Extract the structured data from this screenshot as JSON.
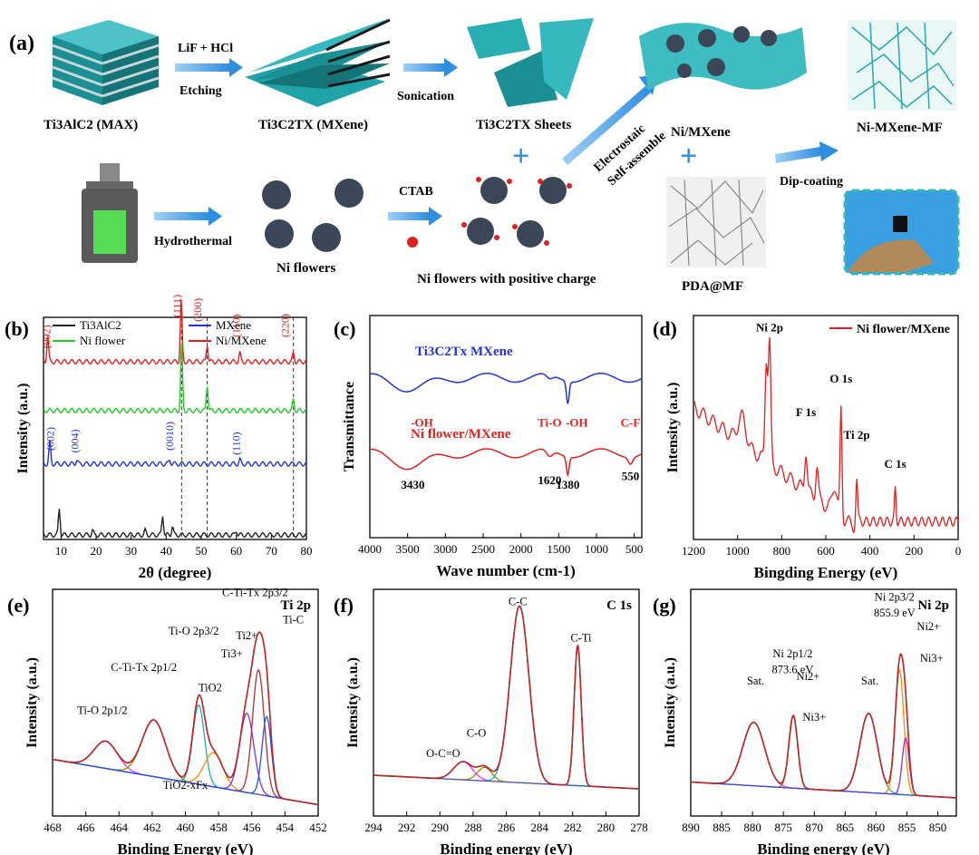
{
  "colors": {
    "teal": "#1aa3a8",
    "blue_arrow": "#2f8de0",
    "red": "#e02020",
    "green": "#22cc22",
    "blue": "#2233dd",
    "black": "#222222",
    "magenta": "#ff33ff",
    "olive": "#9a8a00",
    "cyan": "#22aaaa",
    "orange": "#ff8c00"
  },
  "panel_a": {
    "label": "(a)",
    "max": "Ti3AlC2 (MAX)",
    "mxene": "Ti3C2TX (MXene)",
    "sheets": "Ti3C2TX Sheets",
    "etch_top": "LiF + HCl",
    "etch_bottom": "Etching",
    "sonication": "Sonication",
    "hydrothermal": "Hydrothermal",
    "ni_flowers": "Ni flowers",
    "ctab": "CTAB",
    "positive": "Ni flowers with positive charge",
    "electrostatic": "Electrostaic",
    "self_assemble": "Self-assemble",
    "ni_mxene": "Ni/MXene",
    "pda": "PDA@MF",
    "dip": "Dip-coating",
    "ni_mxene_mf": "Ni-MXene-MF"
  },
  "chart_data": [
    {
      "id": "b",
      "type": "line",
      "label": "(b)",
      "xlabel": "2θ (degree)",
      "ylabel": "Intensity (a.u.)",
      "xlim": [
        5,
        80
      ],
      "xticks": [
        10,
        20,
        30,
        40,
        50,
        60,
        70,
        80
      ],
      "legend": [
        "Ti3AlC2",
        "MXene",
        "Ni flower",
        "Ni/MXene"
      ],
      "series": [
        {
          "name": "Ni/MXene",
          "color": "#e02020",
          "offset": 0.8,
          "peaks": [
            [
              6.2,
              0.12
            ],
            [
              44.3,
              0.28
            ],
            [
              51.7,
              0.08
            ],
            [
              61.0,
              0.04
            ],
            [
              76.3,
              0.04
            ]
          ]
        },
        {
          "name": "Ni flower",
          "color": "#22cc22",
          "offset": 0.58,
          "peaks": [
            [
              44.4,
              0.32
            ],
            [
              51.7,
              0.12
            ],
            [
              76.3,
              0.05
            ]
          ]
        },
        {
          "name": "MXene",
          "color": "#2233dd",
          "offset": 0.34,
          "peaks": [
            [
              6.8,
              0.1
            ],
            [
              14.5,
              0.02
            ],
            [
              41,
              0.02
            ],
            [
              61,
              0.02
            ]
          ]
        },
        {
          "name": "Ti3AlC2",
          "color": "#222222",
          "offset": 0.02,
          "peaks": [
            [
              9.5,
              0.12
            ],
            [
              19,
              0.02
            ],
            [
              34,
              0.02
            ],
            [
              39,
              0.09
            ],
            [
              41.8,
              0.04
            ],
            [
              60,
              0.02
            ]
          ]
        }
      ],
      "peak_labels": [
        {
          "text": "(002)",
          "x": 7,
          "y": 0.86,
          "color": "#e02020"
        },
        {
          "text": "(111)",
          "x": 44,
          "y": 1.0,
          "color": "#e02020"
        },
        {
          "text": "(200)",
          "x": 50,
          "y": 0.98,
          "color": "#e02020"
        },
        {
          "text": "(110)",
          "x": 61,
          "y": 0.91,
          "color": "#e02020"
        },
        {
          "text": "(220)",
          "x": 75,
          "y": 0.91,
          "color": "#e02020"
        },
        {
          "text": "(002)",
          "x": 8,
          "y": 0.4,
          "color": "#2233dd"
        },
        {
          "text": "(004)",
          "x": 15,
          "y": 0.39,
          "color": "#2233dd"
        },
        {
          "text": "(0010)",
          "x": 42,
          "y": 0.4,
          "color": "#2233dd"
        },
        {
          "text": "(110)",
          "x": 61,
          "y": 0.38,
          "color": "#2233dd"
        }
      ],
      "dashed_x": [
        44.4,
        51.7,
        76.3
      ]
    },
    {
      "id": "c",
      "type": "line",
      "label": "(c)",
      "xlabel": "Wave number (cm-1)",
      "ylabel": "Transmittance",
      "xlim": [
        4000,
        400
      ],
      "xticks": [
        4000,
        3500,
        3000,
        2500,
        2000,
        1500,
        1000,
        500
      ],
      "series": [
        {
          "name": "Ti3C2Tx MXene",
          "color": "#2233dd",
          "base": 0.72,
          "dips": [
            [
              3430,
              0.05,
              300
            ],
            [
              1620,
              0.02,
              60
            ],
            [
              1380,
              0.1,
              25
            ]
          ]
        },
        {
          "name": "Ni flower/MXene",
          "color": "#e02020",
          "base": 0.38,
          "dips": [
            [
              3430,
              0.06,
              300
            ],
            [
              1620,
              0.03,
              60
            ],
            [
              1380,
              0.08,
              25
            ],
            [
              550,
              0.03,
              40
            ]
          ]
        }
      ],
      "annotations": [
        "-OH",
        "3430",
        "Ti-O",
        "1620",
        "-OH",
        "1380",
        "C-F",
        "550"
      ]
    },
    {
      "id": "d",
      "type": "line",
      "label": "(d)",
      "xlabel": "Bingding Energy (eV)",
      "ylabel": "Intensity (a.u.)",
      "xlim": [
        1200,
        0
      ],
      "xticks": [
        1200,
        1000,
        800,
        600,
        400,
        200,
        0
      ],
      "legend": [
        "Ni flower/MXene"
      ],
      "peak_labels": [
        "Ni 2p",
        "F 1s",
        "O 1s",
        "Ti 2p",
        "C 1s"
      ]
    },
    {
      "id": "e",
      "type": "line",
      "label": "(e)",
      "corner": "Ti 2p",
      "xlabel": "Binding Energy (eV)",
      "ylabel": "Intensity (a.u.)",
      "xlim": [
        468,
        452
      ],
      "xticks": [
        468,
        466,
        464,
        462,
        460,
        458,
        456,
        454,
        452
      ],
      "peak_labels": [
        "Ti-O 2p1/2",
        "C-Ti-Tx 2p1/2",
        "Ti-O 2p3/2",
        "C-Ti-Tx 2p3/2",
        "Ti2+",
        "Ti3+",
        "TiO2",
        "Ti-C",
        "TiO2-xFx"
      ]
    },
    {
      "id": "f",
      "type": "line",
      "label": "(f)",
      "corner": "C 1s",
      "xlabel": "Binding energy (eV)",
      "ylabel": "Intensity (a.u.)",
      "xlim": [
        294,
        278
      ],
      "xticks": [
        294,
        292,
        290,
        288,
        286,
        284,
        282,
        280,
        278
      ],
      "peak_labels": [
        "C-C",
        "C-Ti",
        "C-O",
        "O-C=O"
      ]
    },
    {
      "id": "g",
      "type": "line",
      "label": "(g)",
      "corner": "Ni 2p",
      "xlabel": "Binding energy (eV)",
      "ylabel": "Intensity (a.u.)",
      "xlim": [
        890,
        847
      ],
      "xticks": [
        890,
        885,
        880,
        875,
        870,
        865,
        860,
        855,
        850
      ],
      "peak_labels": [
        "Ni 2p3/2",
        "855.9 eV",
        "Ni 2p1/2",
        "873.6 eV",
        "Sat.",
        "Sat.",
        "Ni2+",
        "Ni3+",
        "Ni2+",
        "Ni3+"
      ]
    }
  ]
}
